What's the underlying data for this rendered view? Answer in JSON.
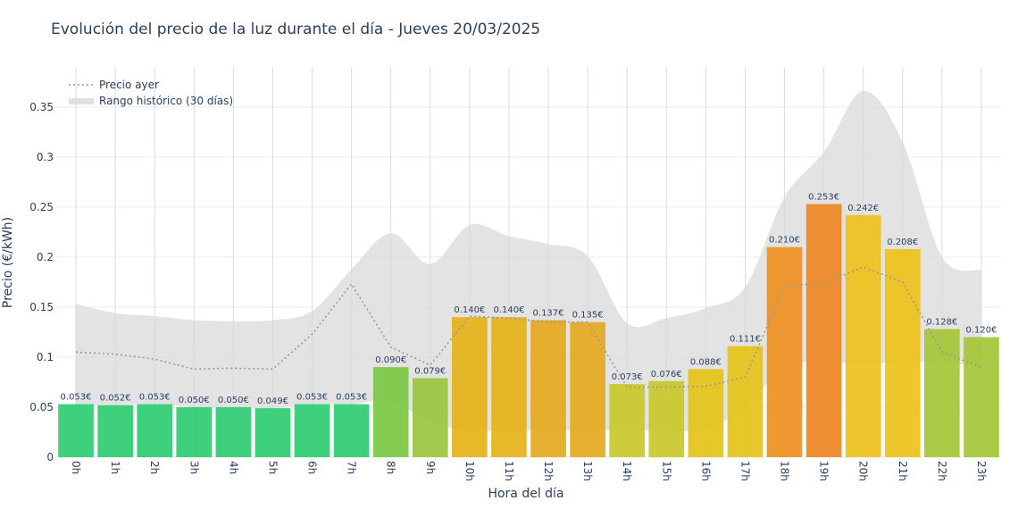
{
  "chart_data": {
    "type": "bar",
    "title": "Evolución del precio de la luz durante el día - Jueves 20/03/2025",
    "xlabel": "Hora del día",
    "ylabel": "Precio (€/kWh)",
    "ylim": [
      0,
      0.39
    ],
    "yticks": [
      0,
      0.05,
      0.1,
      0.15,
      0.2,
      0.25,
      0.3,
      0.35
    ],
    "ytick_labels": [
      "0",
      "0.05",
      "0.1",
      "0.15",
      "0.2",
      "0.25",
      "0.3",
      "0.35"
    ],
    "categories": [
      "0h",
      "1h",
      "2h",
      "3h",
      "4h",
      "5h",
      "6h",
      "7h",
      "8h",
      "9h",
      "10h",
      "11h",
      "12h",
      "13h",
      "14h",
      "15h",
      "16h",
      "17h",
      "18h",
      "19h",
      "20h",
      "21h",
      "22h",
      "23h"
    ],
    "values": [
      0.053,
      0.052,
      0.053,
      0.05,
      0.05,
      0.049,
      0.053,
      0.053,
      0.09,
      0.079,
      0.14,
      0.14,
      0.137,
      0.135,
      0.073,
      0.076,
      0.088,
      0.111,
      0.21,
      0.253,
      0.242,
      0.208,
      0.128,
      0.12
    ],
    "value_labels": [
      "0.053€",
      "0.052€",
      "0.053€",
      "0.050€",
      "0.050€",
      "0.049€",
      "0.053€",
      "0.053€",
      "0.090€",
      "0.079€",
      "0.140€",
      "0.140€",
      "0.137€",
      "0.135€",
      "0.073€",
      "0.076€",
      "0.088€",
      "0.111€",
      "0.210€",
      "0.253€",
      "0.242€",
      "0.208€",
      "0.128€",
      "0.120€"
    ],
    "bar_colors": [
      "#2ecc71",
      "#2ecc71",
      "#2ecc71",
      "#2ecc71",
      "#2ecc71",
      "#2ecc71",
      "#2ecc71",
      "#2ecc71",
      "#7ac943",
      "#9bc53d",
      "#e5b318",
      "#e5b318",
      "#e5a91e",
      "#e5a91e",
      "#c9c82a",
      "#c9c82a",
      "#e5c319",
      "#e5c319",
      "#ef9021",
      "#ee8724",
      "#eec21a",
      "#eec21a",
      "#a4c637",
      "#a4c637"
    ],
    "series": [
      {
        "name": "Precio ayer",
        "style": "dotted",
        "color": "#999999",
        "values": [
          0.105,
          0.103,
          0.098,
          0.088,
          0.089,
          0.088,
          0.123,
          0.173,
          0.11,
          0.092,
          0.141,
          0.139,
          0.135,
          0.135,
          0.07,
          0.07,
          0.071,
          0.08,
          0.171,
          0.174,
          0.19,
          0.175,
          0.105,
          0.09
        ]
      },
      {
        "name": "Rango histórico (30 días)",
        "style": "band",
        "color": "#d9d9d9",
        "upper": [
          0.153,
          0.144,
          0.141,
          0.137,
          0.136,
          0.137,
          0.146,
          0.188,
          0.224,
          0.193,
          0.232,
          0.221,
          0.213,
          0.201,
          0.134,
          0.139,
          0.149,
          0.17,
          0.26,
          0.305,
          0.366,
          0.315,
          0.2,
          0.187
        ],
        "lower": [
          0.053,
          0.052,
          0.053,
          0.05,
          0.05,
          0.049,
          0.053,
          0.053,
          0.056,
          0.035,
          0.027,
          0.027,
          0.027,
          0.027,
          0.027,
          0.027,
          0.028,
          0.05,
          0.09,
          0.095,
          0.093,
          0.095,
          0.095,
          0.09
        ]
      }
    ],
    "legend": {
      "position": "top-left",
      "items": [
        "Precio ayer",
        "Rango histórico (30 días)"
      ]
    },
    "grid": true
  }
}
